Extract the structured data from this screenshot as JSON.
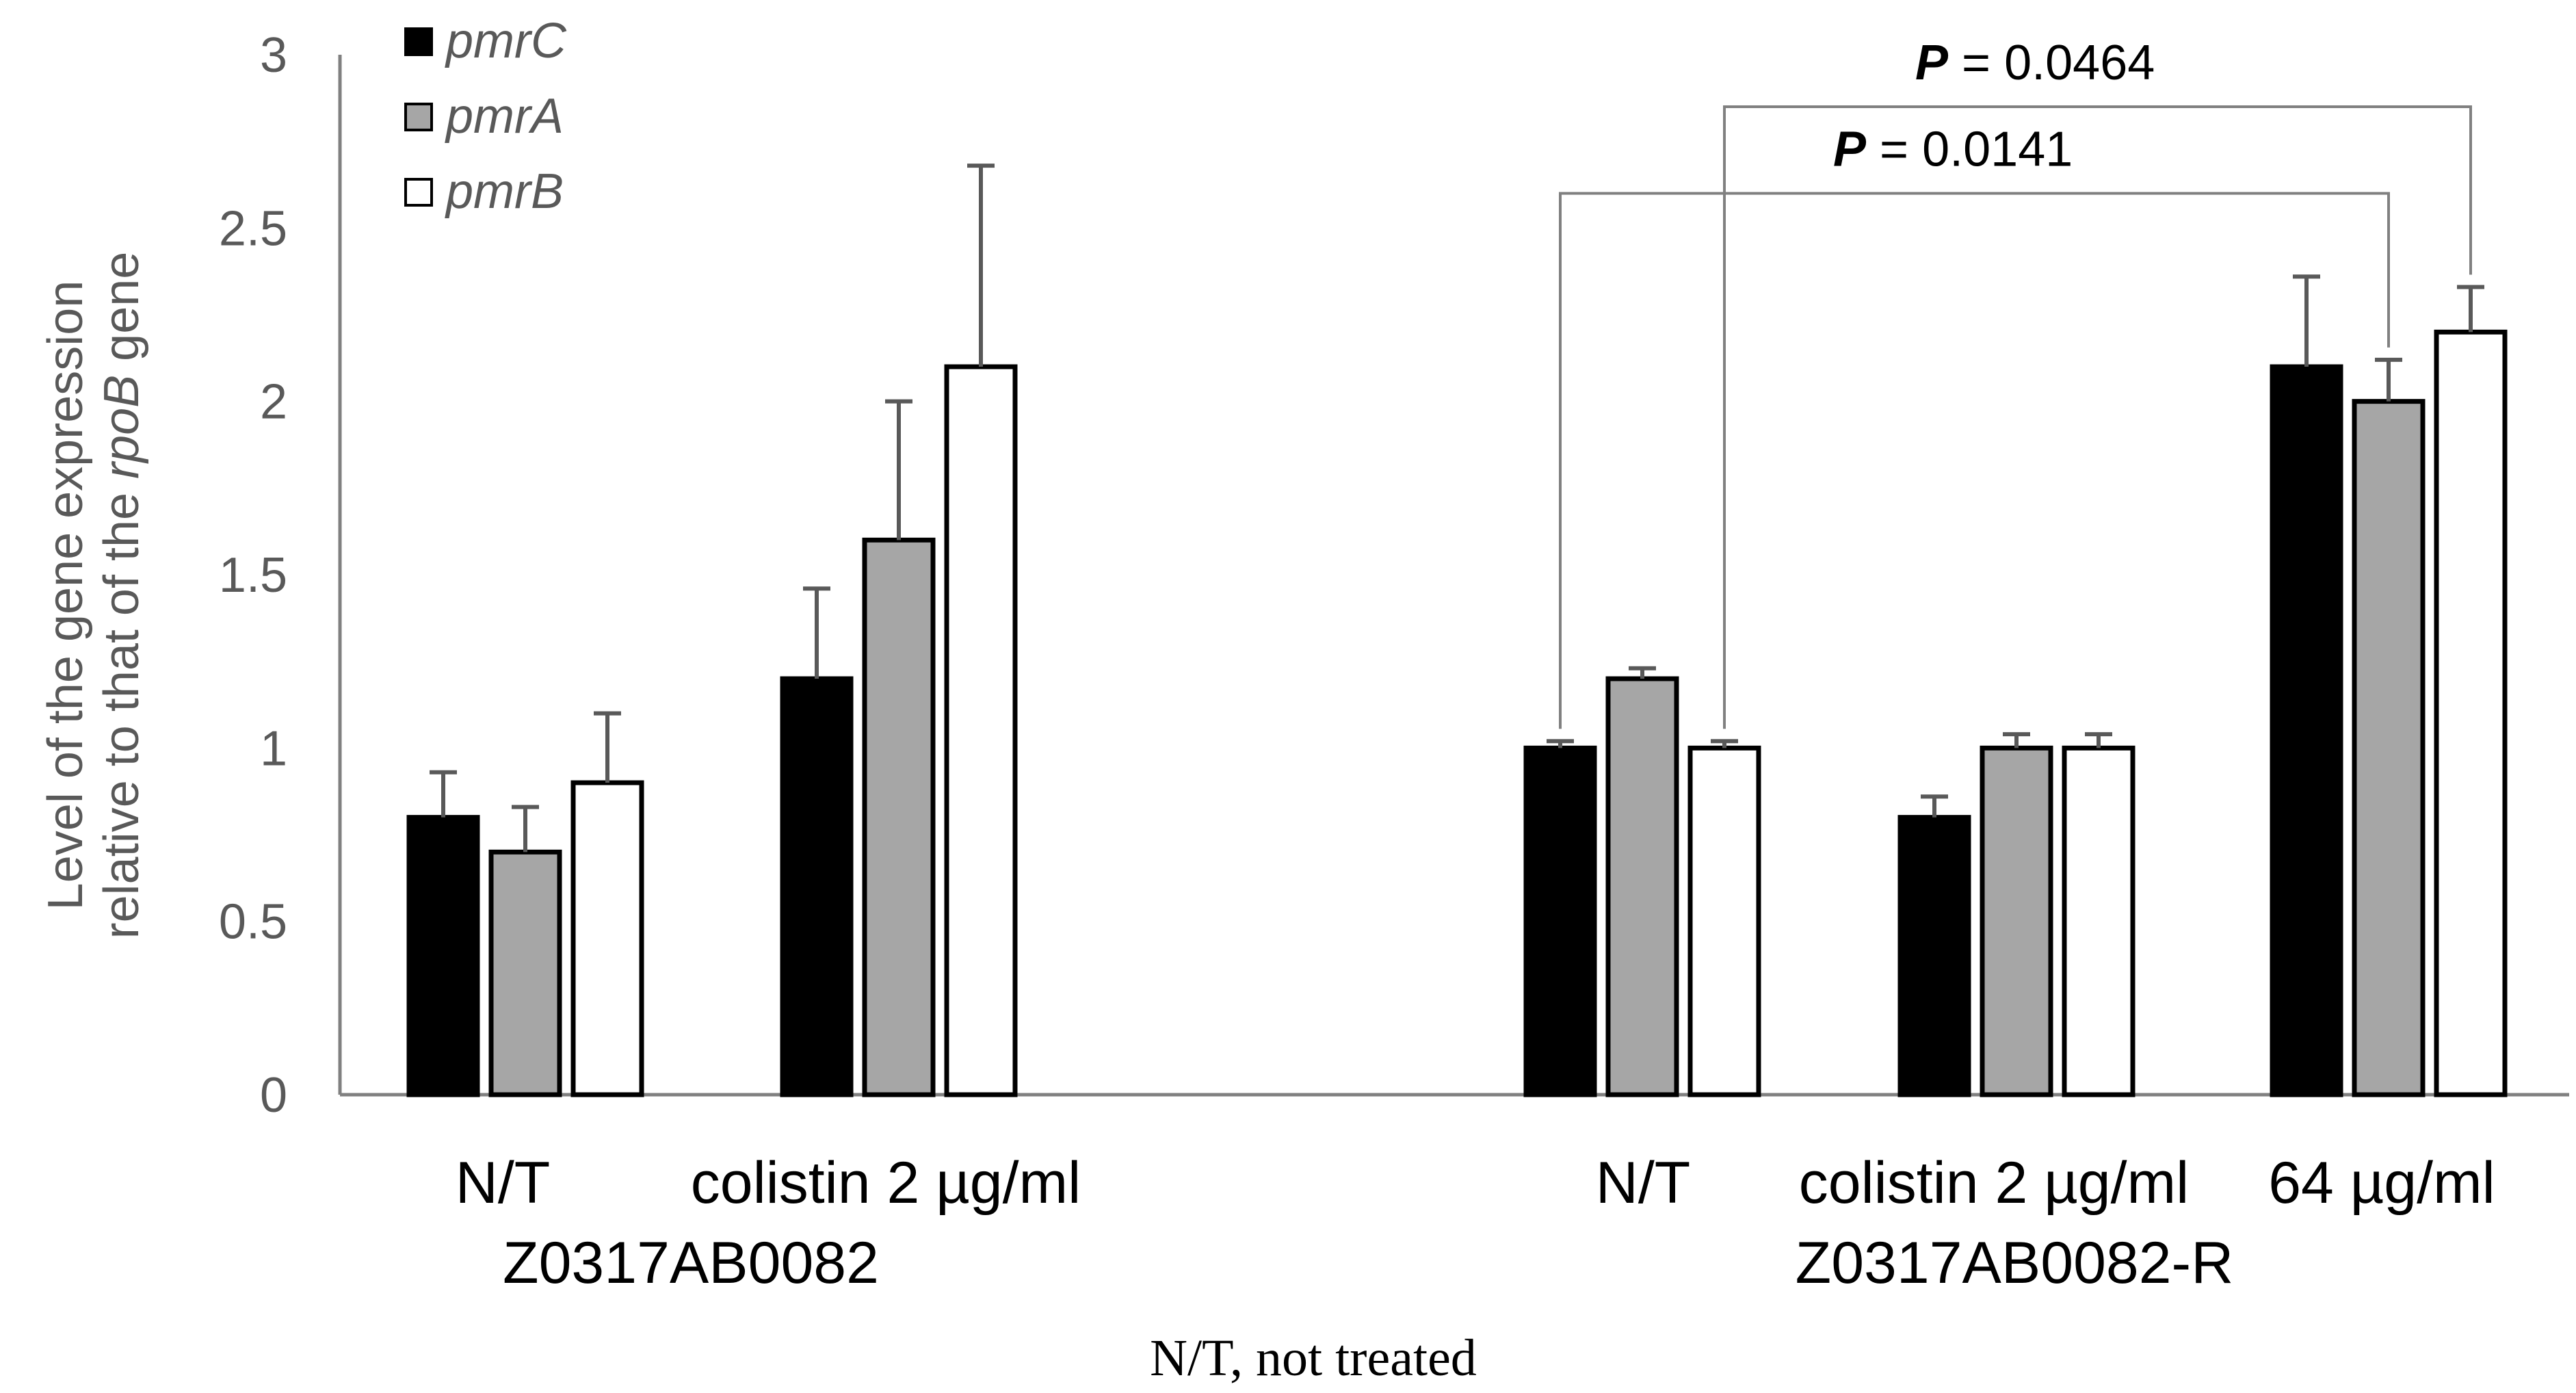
{
  "chart_data": {
    "type": "bar",
    "title": "",
    "ylabel_line1": "Level of the gene expression",
    "ylabel_line2_pre": "relative to that of the ",
    "ylabel_line2_gene": "rpoB",
    "ylabel_line2_post": " gene",
    "ylim": [
      0,
      3
    ],
    "yticks": [
      0,
      0.5,
      1,
      1.5,
      2,
      2.5,
      3
    ],
    "ytick_labels": [
      "0",
      "0.5",
      "1",
      "1.5",
      "2",
      "2.5",
      "3"
    ],
    "grid": false,
    "legend_position": "top-left",
    "series": [
      {
        "name": "pmrC",
        "color": "#000000",
        "values": [
          0.8,
          1.2,
          1.0,
          0.8,
          2.1
        ],
        "errors": [
          0.13,
          0.26,
          0.02,
          0.06,
          0.26
        ]
      },
      {
        "name": "pmrA",
        "color": "#a6a6a6",
        "values": [
          0.7,
          1.6,
          1.2,
          1.0,
          2.0
        ],
        "errors": [
          0.13,
          0.4,
          0.03,
          0.04,
          0.12
        ]
      },
      {
        "name": "pmrB",
        "color": "#ffffff",
        "values": [
          0.9,
          2.1,
          1.0,
          1.0,
          2.2
        ],
        "errors": [
          0.2,
          0.58,
          0.02,
          0.04,
          0.13
        ]
      }
    ],
    "categories": [
      "N/T",
      "colistin 2 µg/ml",
      "N/T",
      "colistin 2 µg/ml",
      "64 µg/ml"
    ],
    "groups": [
      {
        "label": "Z0317AB0082"
      },
      {
        "label": "Z0317AB0082-R"
      }
    ],
    "annotations": [
      {
        "p_label": "P",
        "p_value": " = 0.0464",
        "from": {
          "cat": 2,
          "series": 2
        },
        "to": {
          "cat": 4,
          "series": 2
        },
        "level": 2.85
      },
      {
        "p_label": "P",
        "p_value": " = 0.0141",
        "from": {
          "cat": 2,
          "series": 0
        },
        "to": {
          "cat": 4,
          "series": 1
        },
        "level": 2.6
      }
    ],
    "footnote": "N/T, not treated"
  }
}
